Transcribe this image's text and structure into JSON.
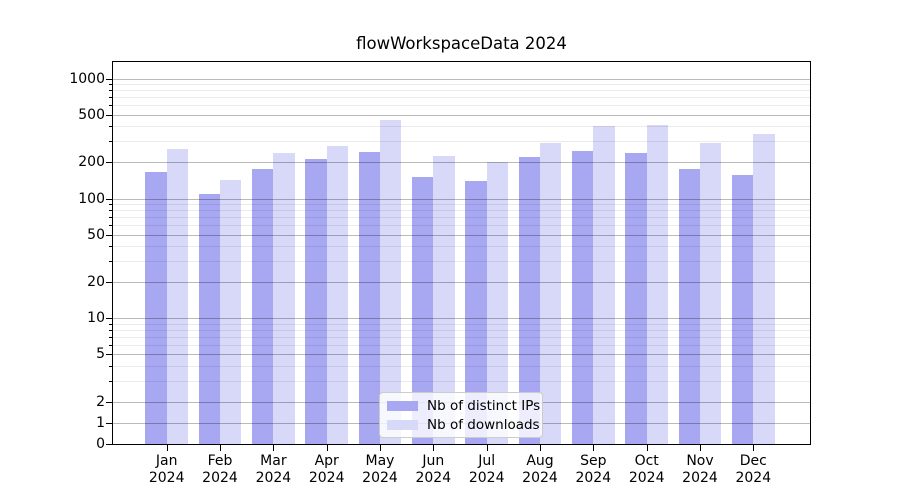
{
  "title": "flowWorkspaceData 2024",
  "chart_data": {
    "type": "bar",
    "title": "flowWorkspaceData 2024",
    "categories": [
      "Jan 2024",
      "Feb 2024",
      "Mar 2024",
      "Apr 2024",
      "May 2024",
      "Jun 2024",
      "Jul 2024",
      "Aug 2024",
      "Sep 2024",
      "Oct 2024",
      "Nov 2024",
      "Dec 2024"
    ],
    "x_tick_months": [
      "Jan",
      "Feb",
      "Mar",
      "Apr",
      "May",
      "Jun",
      "Jul",
      "Aug",
      "Sep",
      "Oct",
      "Nov",
      "Dec"
    ],
    "x_tick_year": "2024",
    "series": [
      {
        "name": "Nb of distinct IPs",
        "color": "#a7a7f2",
        "values": [
          165,
          110,
          175,
          215,
          245,
          150,
          140,
          220,
          250,
          240,
          175,
          157
        ]
      },
      {
        "name": "Nb of downloads",
        "color": "#d8d8f8",
        "values": [
          260,
          143,
          240,
          275,
          455,
          228,
          200,
          290,
          400,
          410,
          288,
          348
        ]
      }
    ],
    "xlabel": "",
    "ylabel": "",
    "yscale": "symlog",
    "ylim": [
      0,
      1376
    ],
    "grid": "on",
    "legend_position": "lower center",
    "y_major_ticks": [
      {
        "v": 1000,
        "label": "1000"
      },
      {
        "v": 500,
        "label": "500"
      },
      {
        "v": 200,
        "label": "200"
      },
      {
        "v": 100,
        "label": "100"
      },
      {
        "v": 50,
        "label": "50"
      },
      {
        "v": 20,
        "label": "20"
      },
      {
        "v": 10,
        "label": "10"
      },
      {
        "v": 5,
        "label": "5"
      },
      {
        "v": 2,
        "label": "2"
      },
      {
        "v": 1,
        "label": "1"
      },
      {
        "v": 0,
        "label": "0"
      }
    ],
    "y_minor_ticks": [
      3,
      4,
      6,
      7,
      8,
      9,
      30,
      40,
      60,
      70,
      80,
      90,
      300,
      400,
      600,
      700,
      800,
      900
    ]
  },
  "legend": {
    "items": [
      {
        "label": "Nb of distinct IPs"
      },
      {
        "label": "Nb of downloads"
      }
    ]
  }
}
